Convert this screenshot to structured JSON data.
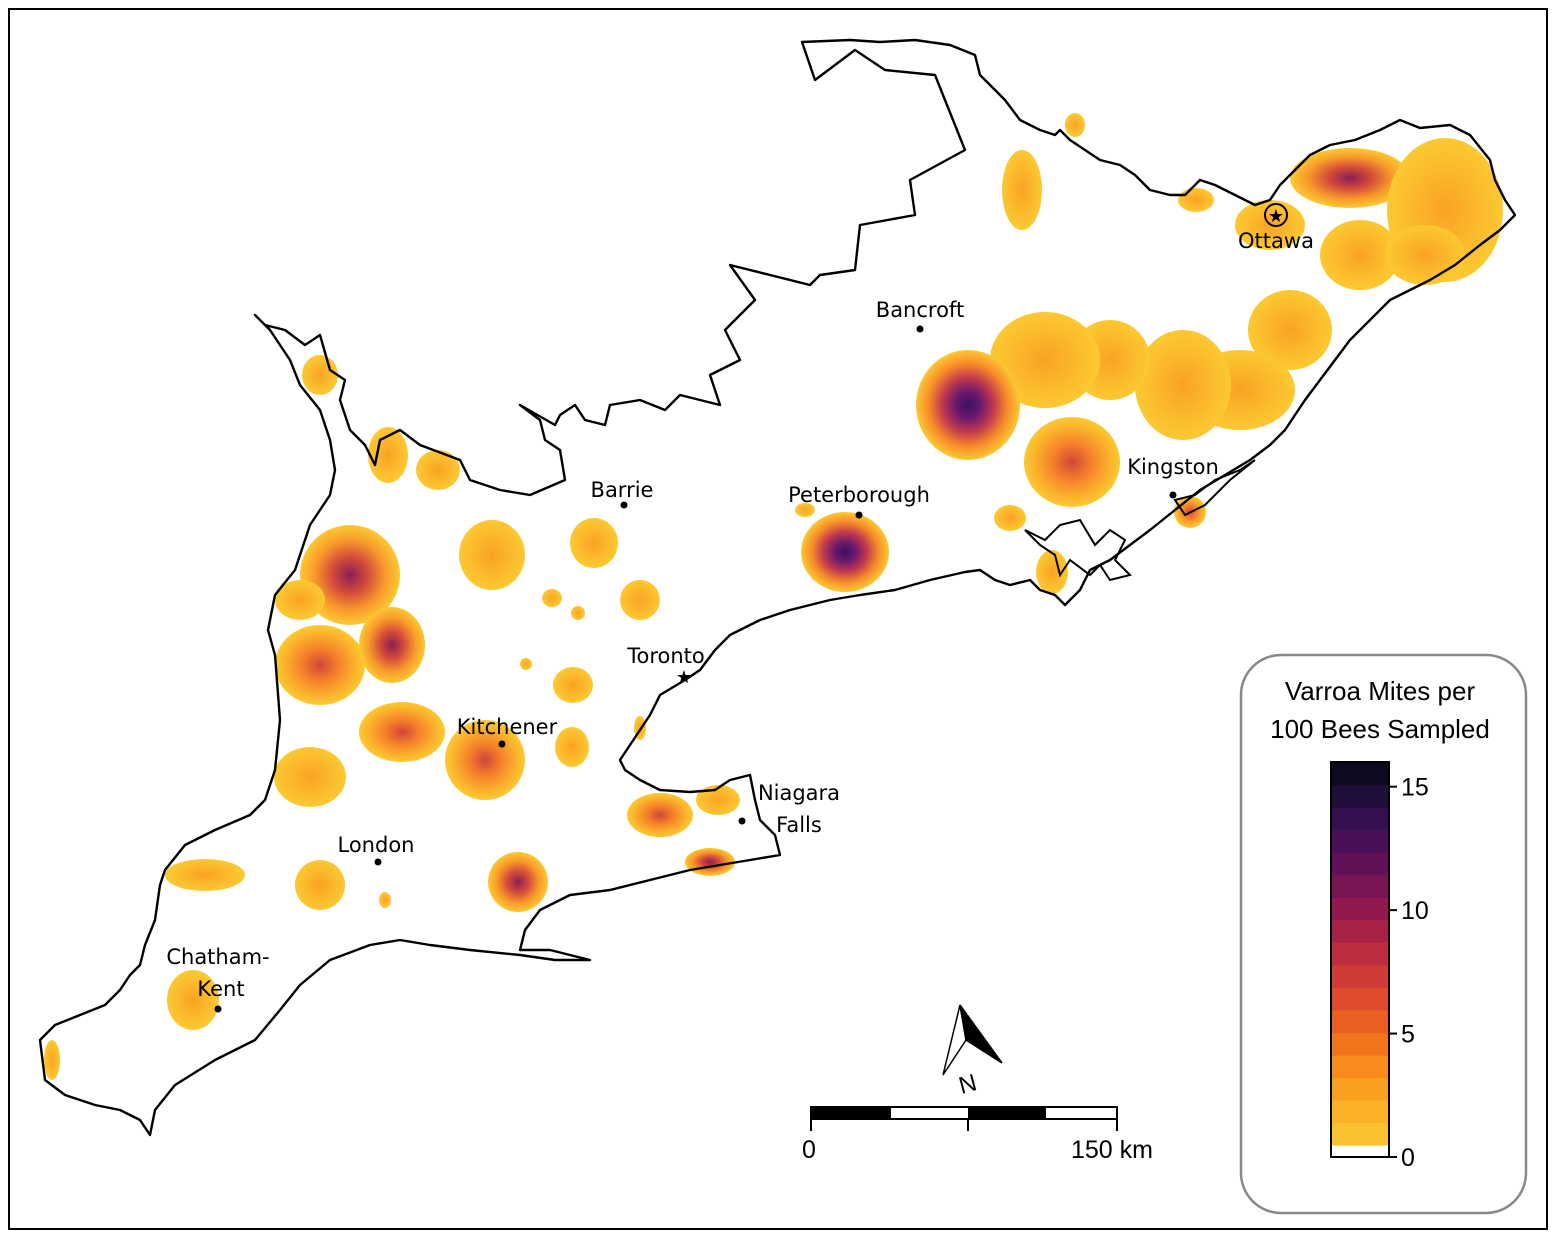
{
  "cities": [
    {
      "id": "ottawa",
      "label": "Ottawa",
      "marker": "capital-star-circle"
    },
    {
      "id": "bancroft",
      "label": "Bancroft",
      "marker": "dot"
    },
    {
      "id": "kingston",
      "label": "Kingston",
      "marker": "dot"
    },
    {
      "id": "peterborough",
      "label": "Peterborough",
      "marker": "dot"
    },
    {
      "id": "barrie",
      "label": "Barrie",
      "marker": "dot"
    },
    {
      "id": "toronto",
      "label": "Toronto",
      "marker": "star"
    },
    {
      "id": "kitchener",
      "label": "Kitchener",
      "marker": "dot"
    },
    {
      "id": "niagara",
      "label_lines": [
        "Niagara",
        "Falls"
      ],
      "marker": "dot"
    },
    {
      "id": "london",
      "label": "London",
      "marker": "dot"
    },
    {
      "id": "chatham",
      "label_lines": [
        "Chatham-",
        "Kent"
      ],
      "marker": "dot"
    }
  ],
  "legend": {
    "title_lines": [
      "Varroa Mites per",
      "100 Bees Sampled"
    ],
    "ticks": [
      "15",
      "10",
      "5",
      "0"
    ],
    "range": [
      0,
      16
    ],
    "colors": [
      "#fcc130",
      "#fbb228",
      "#f9a021",
      "#f78b1c",
      "#f2751c",
      "#ea6023",
      "#de4c2d",
      "#cf3b36",
      "#bd2d3f",
      "#a82247",
      "#91194f",
      "#7a1555",
      "#621158",
      "#4b0f57",
      "#341050",
      "#200e3a",
      "#0f0a1f"
    ]
  },
  "scale_bar": {
    "start_label": "0",
    "end_label": "150 km"
  },
  "north_arrow": {
    "label": "N"
  }
}
